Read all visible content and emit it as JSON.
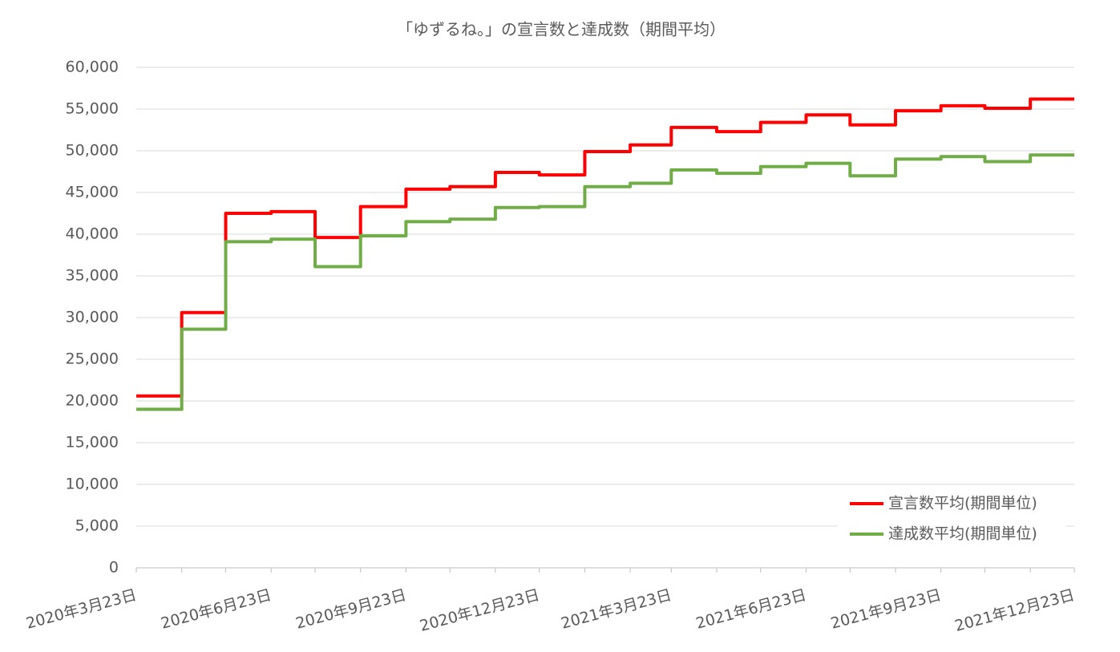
{
  "chart_data": {
    "type": "step",
    "title": "「ゆずるね。」の宣言数と達成数（期間平均）",
    "x": [
      "2020-03-23",
      "2020-04-23",
      "2020-05-23",
      "2020-06-23",
      "2020-07-23",
      "2020-08-23",
      "2020-09-23",
      "2020-10-23",
      "2020-11-23",
      "2020-12-23",
      "2021-01-23",
      "2021-02-23",
      "2021-03-23",
      "2021-04-23",
      "2021-05-23",
      "2021-06-23",
      "2021-07-23",
      "2021-08-23",
      "2021-09-23",
      "2021-10-23",
      "2021-11-23"
    ],
    "series": [
      {
        "name": "宣言数平均(期間単位)",
        "color": "#ff0000",
        "values": [
          20600,
          30600,
          42500,
          42700,
          39600,
          43300,
          45400,
          45700,
          47400,
          47100,
          49900,
          50700,
          52800,
          52300,
          53400,
          54300,
          53100,
          54800,
          55400,
          55100,
          56200
        ]
      },
      {
        "name": "達成数平均(期間単位)",
        "color": "#70ad47",
        "values": [
          19000,
          28600,
          39100,
          39400,
          36100,
          39800,
          41500,
          41800,
          43200,
          43300,
          45700,
          46100,
          47700,
          47300,
          48100,
          48500,
          47000,
          49000,
          49300,
          48700,
          49500
        ]
      }
    ],
    "xlim": [
      "2020-03-23",
      "2021-12-23"
    ],
    "xticks": [
      {
        "value": "2020-03-23",
        "label": "2020年3月23日"
      },
      {
        "value": "2020-06-23",
        "label": "2020年6月23日"
      },
      {
        "value": "2020-09-23",
        "label": "2020年9月23日"
      },
      {
        "value": "2020-12-23",
        "label": "2020年12月23日"
      },
      {
        "value": "2021-03-23",
        "label": "2021年3月23日"
      },
      {
        "value": "2021-06-23",
        "label": "2021年6月23日"
      },
      {
        "value": "2021-09-23",
        "label": "2021年9月23日"
      },
      {
        "value": "2021-12-23",
        "label": "2021年12月23日"
      }
    ],
    "xminorticks": [
      "2020-04-23",
      "2020-05-23",
      "2020-07-23",
      "2020-08-23",
      "2020-10-23",
      "2020-11-23",
      "2021-01-23",
      "2021-02-23",
      "2021-04-23",
      "2021-05-23",
      "2021-07-23",
      "2021-08-23",
      "2021-10-23",
      "2021-11-23"
    ],
    "ylim": [
      0,
      60000
    ],
    "yticks": [
      0,
      {
        "value": 5000,
        "label": "5,000"
      },
      {
        "value": 10000,
        "label": "10,000"
      },
      {
        "value": 15000,
        "label": "15,000"
      },
      {
        "value": 20000,
        "label": "20,000"
      },
      {
        "value": 25000,
        "label": "25,000"
      },
      {
        "value": 30000,
        "label": "30,000"
      },
      {
        "value": 35000,
        "label": "35,000"
      },
      {
        "value": 40000,
        "label": "40,000"
      },
      {
        "value": 45000,
        "label": "45,000"
      },
      {
        "value": 50000,
        "label": "50,000"
      },
      {
        "value": 55000,
        "label": "55,000"
      },
      {
        "value": 60000,
        "label": "60,000"
      }
    ],
    "grid": true,
    "legend": "lower right"
  }
}
